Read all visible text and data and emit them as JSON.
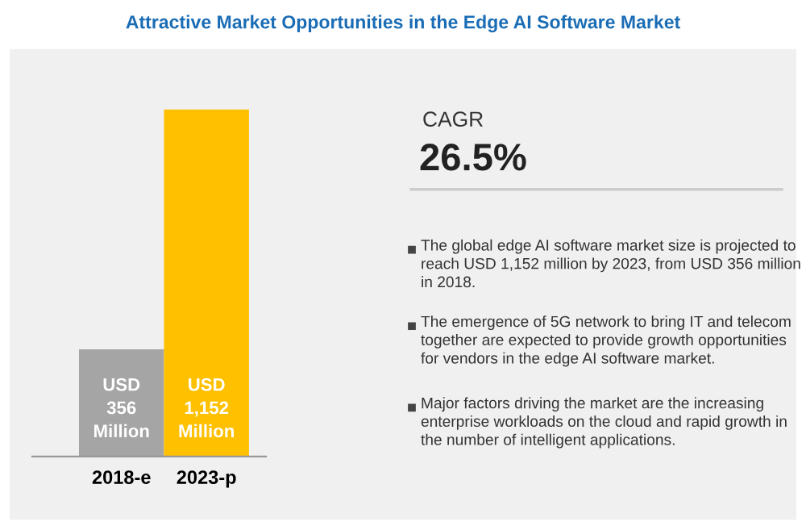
{
  "chart_data": {
    "type": "bar",
    "title": "Attractive Market Opportunities in the Edge AI Software Market",
    "categories": [
      "2018-e",
      "2023-p"
    ],
    "values": [
      356,
      1152
    ],
    "colors": [
      "#a5a5a5",
      "#ffc000"
    ],
    "value_labels": [
      "USD\n356\nMillion",
      "USD\n1,152\nMillion"
    ],
    "annotations": [
      "CAGR",
      "26.5%",
      "The global edge AI software market size is projected to reach USD 1,152 million by 2023, from USD 356 million in 2018.",
      "The emergence of 5G network to bring IT and telecom together are expected to provide growth opportunities for vendors in the edge AI software market.",
      "Major factors driving the market are the increasing enterprise workloads on the cloud and rapid growth in the number of intelligent applications."
    ],
    "grid": false,
    "legend": false
  }
}
